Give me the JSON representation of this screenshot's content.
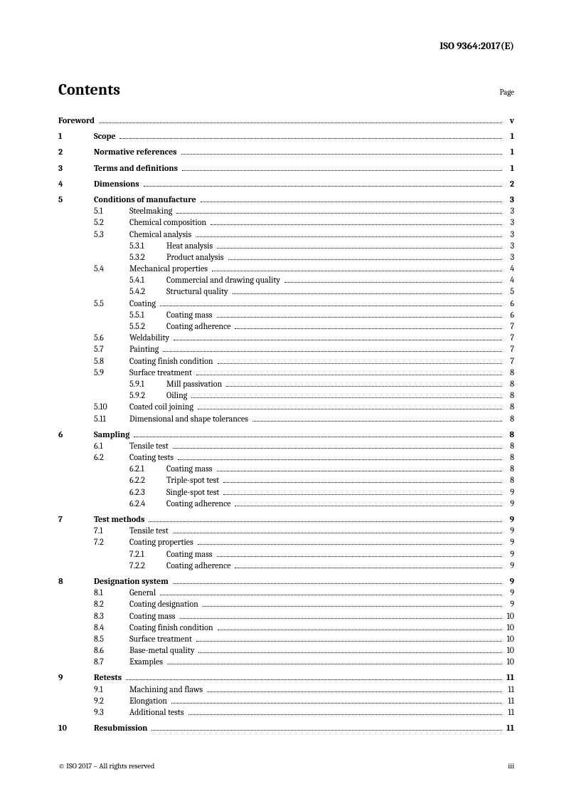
{
  "header": "ISO 9364:2017(E)",
  "title": "Contents",
  "page_label": "Page",
  "footer_left": "© ISO 2017 – All rights reserved",
  "footer_right": "iii",
  "toc": [
    {
      "group": [
        {
          "level": 0,
          "num": "",
          "title": "Foreword",
          "page": "v",
          "bold": true,
          "num_hidden": true
        }
      ]
    },
    {
      "group": [
        {
          "level": 0,
          "num": "1",
          "title": "Scope",
          "page": "1",
          "bold": true
        }
      ]
    },
    {
      "group": [
        {
          "level": 0,
          "num": "2",
          "title": "Normative references",
          "page": "1",
          "bold": true
        }
      ]
    },
    {
      "group": [
        {
          "level": 0,
          "num": "3",
          "title": "Terms and definitions",
          "page": "1",
          "bold": true
        }
      ]
    },
    {
      "group": [
        {
          "level": 0,
          "num": "4",
          "title": "Dimensions",
          "page": "2",
          "bold": true
        }
      ]
    },
    {
      "group": [
        {
          "level": 0,
          "num": "5",
          "title": "Conditions of manufacture",
          "page": "3",
          "bold": true
        },
        {
          "level": 1,
          "num": "5.1",
          "title": "Steelmaking",
          "page": "3"
        },
        {
          "level": 1,
          "num": "5.2",
          "title": "Chemical composition",
          "page": "3"
        },
        {
          "level": 1,
          "num": "5.3",
          "title": "Chemical analysis",
          "page": "3"
        },
        {
          "level": 2,
          "num": "5.3.1",
          "title": "Heat analysis",
          "page": "3"
        },
        {
          "level": 2,
          "num": "5.3.2",
          "title": "Product analysis",
          "page": "3"
        },
        {
          "level": 1,
          "num": "5.4",
          "title": "Mechanical properties",
          "page": "4"
        },
        {
          "level": 2,
          "num": "5.4.1",
          "title": "Commercial and drawing quality",
          "page": "4"
        },
        {
          "level": 2,
          "num": "5.4.2",
          "title": "Structural quality",
          "page": "5"
        },
        {
          "level": 1,
          "num": "5.5",
          "title": "Coating",
          "page": "6"
        },
        {
          "level": 2,
          "num": "5.5.1",
          "title": "Coating mass",
          "page": "6"
        },
        {
          "level": 2,
          "num": "5.5.2",
          "title": "Coating adherence",
          "page": "7"
        },
        {
          "level": 1,
          "num": "5.6",
          "title": "Weldability",
          "page": "7"
        },
        {
          "level": 1,
          "num": "5.7",
          "title": "Painting",
          "page": "7"
        },
        {
          "level": 1,
          "num": "5.8",
          "title": "Coating finish condition",
          "page": "7"
        },
        {
          "level": 1,
          "num": "5.9",
          "title": "Surface treatment",
          "page": "8"
        },
        {
          "level": 2,
          "num": "5.9.1",
          "title": "Mill passivation",
          "page": "8"
        },
        {
          "level": 2,
          "num": "5.9.2",
          "title": "Oiling",
          "page": "8"
        },
        {
          "level": 1,
          "num": "5.10",
          "title": "Coated coil joining",
          "page": "8"
        },
        {
          "level": 1,
          "num": "5.11",
          "title": "Dimensional and shape tolerances",
          "page": "8"
        }
      ]
    },
    {
      "group": [
        {
          "level": 0,
          "num": "6",
          "title": "Sampling",
          "page": "8",
          "bold": true
        },
        {
          "level": 1,
          "num": "6.1",
          "title": "Tensile test",
          "page": "8"
        },
        {
          "level": 1,
          "num": "6.2",
          "title": "Coating tests",
          "page": "8"
        },
        {
          "level": 2,
          "num": "6.2.1",
          "title": "Coating mass",
          "page": "8"
        },
        {
          "level": 2,
          "num": "6.2.2",
          "title": "Triple-spot test",
          "page": "8"
        },
        {
          "level": 2,
          "num": "6.2.3",
          "title": "Single-spot test",
          "page": "9"
        },
        {
          "level": 2,
          "num": "6.2.4",
          "title": "Coating adherence",
          "page": "9"
        }
      ]
    },
    {
      "group": [
        {
          "level": 0,
          "num": "7",
          "title": "Test methods",
          "page": "9",
          "bold": true
        },
        {
          "level": 1,
          "num": "7.1",
          "title": "Tensile test",
          "page": "9"
        },
        {
          "level": 1,
          "num": "7.2",
          "title": "Coating properties",
          "page": "9"
        },
        {
          "level": 2,
          "num": "7.2.1",
          "title": "Coating mass",
          "page": "9"
        },
        {
          "level": 2,
          "num": "7.2.2",
          "title": "Coating adherence",
          "page": "9"
        }
      ]
    },
    {
      "group": [
        {
          "level": 0,
          "num": "8",
          "title": "Designation system",
          "page": "9",
          "bold": true
        },
        {
          "level": 1,
          "num": "8.1",
          "title": "General",
          "page": "9"
        },
        {
          "level": 1,
          "num": "8.2",
          "title": "Coating designation",
          "page": "9"
        },
        {
          "level": 1,
          "num": "8.3",
          "title": "Coating mass",
          "page": "10"
        },
        {
          "level": 1,
          "num": "8.4",
          "title": "Coating finish condition",
          "page": "10"
        },
        {
          "level": 1,
          "num": "8.5",
          "title": "Surface treatment",
          "page": "10"
        },
        {
          "level": 1,
          "num": "8.6",
          "title": "Base-metal quality",
          "page": "10"
        },
        {
          "level": 1,
          "num": "8.7",
          "title": "Examples",
          "page": "10"
        }
      ]
    },
    {
      "group": [
        {
          "level": 0,
          "num": "9",
          "title": "Retests",
          "page": "11",
          "bold": true
        },
        {
          "level": 1,
          "num": "9.1",
          "title": "Machining and flaws",
          "page": "11"
        },
        {
          "level": 1,
          "num": "9.2",
          "title": "Elongation",
          "page": "11"
        },
        {
          "level": 1,
          "num": "9.3",
          "title": "Additional tests",
          "page": "11"
        }
      ]
    },
    {
      "group": [
        {
          "level": 0,
          "num": "10",
          "title": "Resubmission",
          "page": "11",
          "bold": true
        }
      ]
    }
  ]
}
